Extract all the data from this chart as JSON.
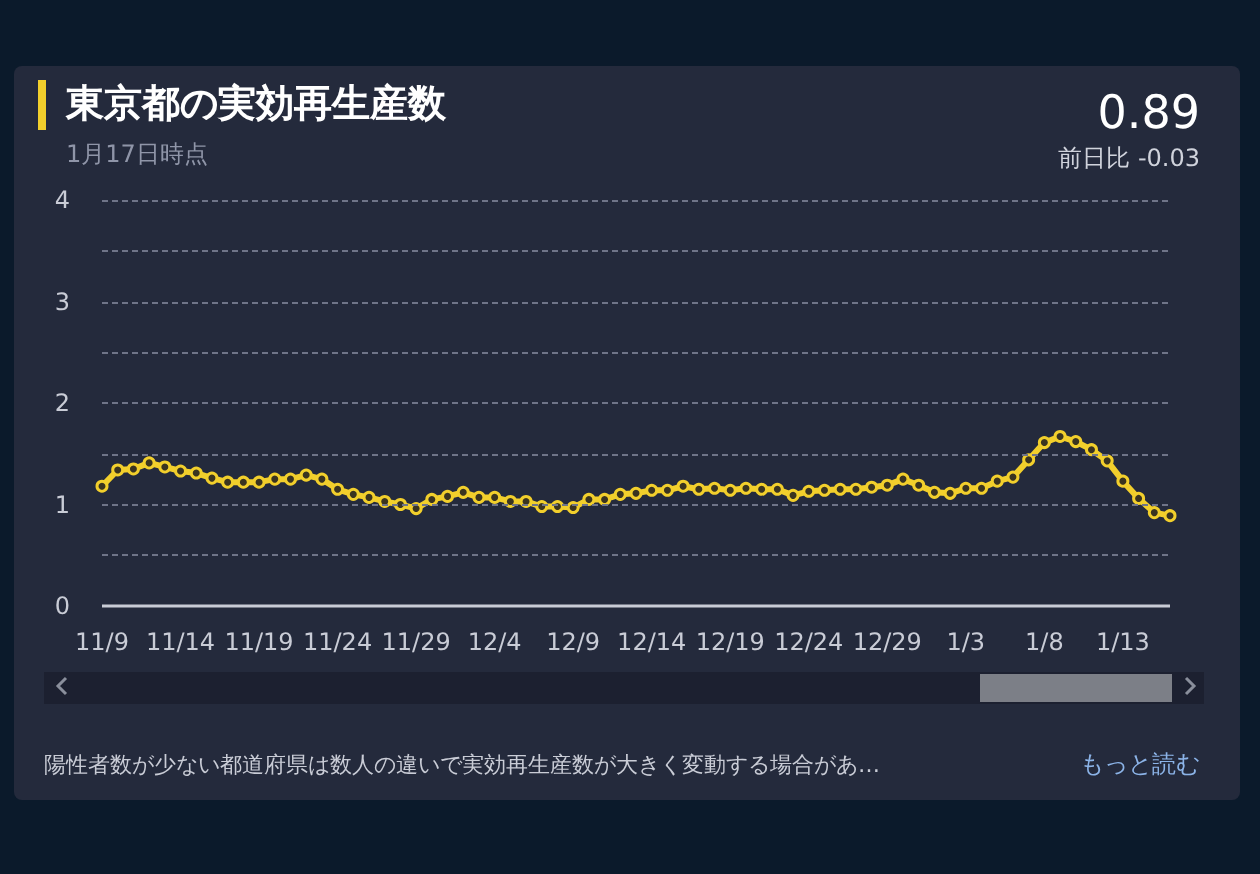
{
  "chart_data": {
    "type": "line",
    "title": "東京都の実効再生産数",
    "subtitle": "1月17日時点",
    "annotations": [
      "0.89",
      "前日比 -0.03",
      "陽性者数が少ない都道府県は数人の違いで実効再生産数が大きく変動する場合があ…",
      "もっと読む"
    ],
    "categories": [
      "11/9",
      null,
      null,
      null,
      null,
      "11/14",
      null,
      null,
      null,
      null,
      "11/19",
      null,
      null,
      null,
      null,
      "11/24",
      null,
      null,
      null,
      null,
      "11/29",
      null,
      null,
      null,
      null,
      "12/4",
      null,
      null,
      null,
      null,
      "12/9",
      null,
      null,
      null,
      null,
      "12/14",
      null,
      null,
      null,
      null,
      "12/19",
      null,
      null,
      null,
      null,
      "12/24",
      null,
      null,
      null,
      null,
      "12/29",
      null,
      null,
      null,
      null,
      "1/3",
      null,
      null,
      null,
      null,
      "1/8",
      null,
      null,
      null,
      null,
      "1/13",
      null,
      null,
      null
    ],
    "series": [
      {
        "color": "#f2cf2c",
        "values": [
          1.18,
          1.34,
          1.35,
          1.41,
          1.37,
          1.33,
          1.31,
          1.26,
          1.22,
          1.22,
          1.22,
          1.25,
          1.25,
          1.29,
          1.25,
          1.15,
          1.1,
          1.07,
          1.03,
          1.0,
          0.96,
          1.05,
          1.08,
          1.12,
          1.07,
          1.07,
          1.03,
          1.03,
          0.98,
          0.98,
          0.97,
          1.05,
          1.05,
          1.1,
          1.11,
          1.14,
          1.14,
          1.18,
          1.15,
          1.16,
          1.14,
          1.16,
          1.15,
          1.15,
          1.09,
          1.13,
          1.14,
          1.15,
          1.15,
          1.17,
          1.19,
          1.25,
          1.19,
          1.12,
          1.11,
          1.16,
          1.16,
          1.23,
          1.27,
          1.44,
          1.61,
          1.67,
          1.62,
          1.54,
          1.43,
          1.23,
          1.06,
          0.92,
          0.89
        ]
      }
    ],
    "ylim": [
      0,
      4
    ],
    "yticks": [
      0,
      {
        "value": 0.5,
        "label": null
      },
      1,
      {
        "value": 1.5,
        "label": null
      },
      2,
      {
        "value": 2.5,
        "label": null
      },
      3,
      {
        "value": 3.5,
        "label": null
      },
      4
    ],
    "grid": "y",
    "marker": "circle",
    "line_style": "solid"
  }
}
